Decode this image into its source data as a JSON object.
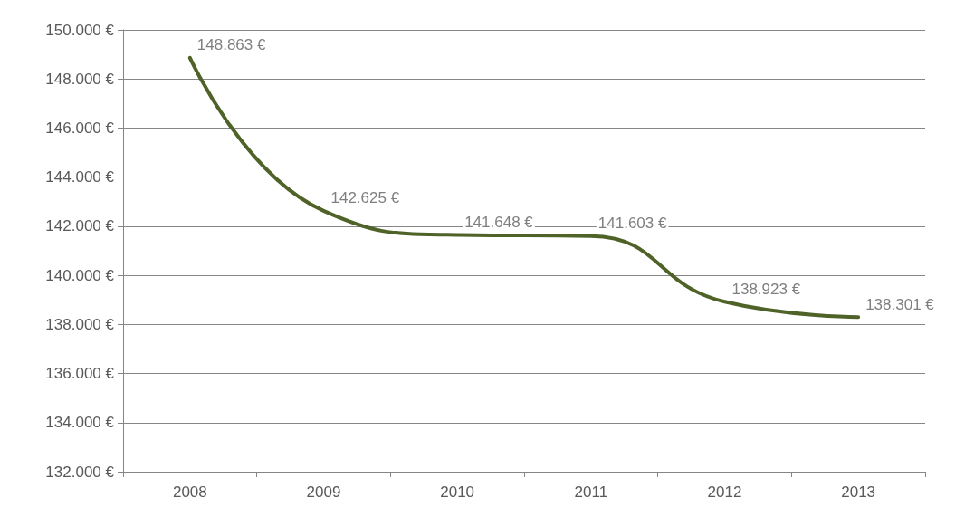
{
  "chart_data": {
    "type": "line",
    "categories": [
      "2008",
      "2009",
      "2010",
      "2011",
      "2012",
      "2013"
    ],
    "series": [
      {
        "color": "#4f6228",
        "values": [
          148863,
          142625,
          141648,
          141603,
          138923,
          138301
        ],
        "value_labels": [
          "148.863 €",
          "142.625 €",
          "141.648 €",
          "141.603 €",
          "138.923 €",
          "138.301 €"
        ]
      }
    ],
    "ylim": [
      132000,
      150000
    ],
    "yticks": [
      {
        "value": 132000,
        "label": "132.000 €"
      },
      {
        "value": 134000,
        "label": "134.000 €"
      },
      {
        "value": 136000,
        "label": "136.000 €"
      },
      {
        "value": 138000,
        "label": "138.000 €"
      },
      {
        "value": 140000,
        "label": "140.000 €"
      },
      {
        "value": 142000,
        "label": "142.000 €"
      },
      {
        "value": 144000,
        "label": "144.000 €"
      },
      {
        "value": 146000,
        "label": "146.000 €"
      },
      {
        "value": 148000,
        "label": "148.000 €"
      },
      {
        "value": 150000,
        "label": "150.000 €"
      }
    ],
    "grid": "y",
    "marker": "none",
    "line_style": "solid"
  }
}
